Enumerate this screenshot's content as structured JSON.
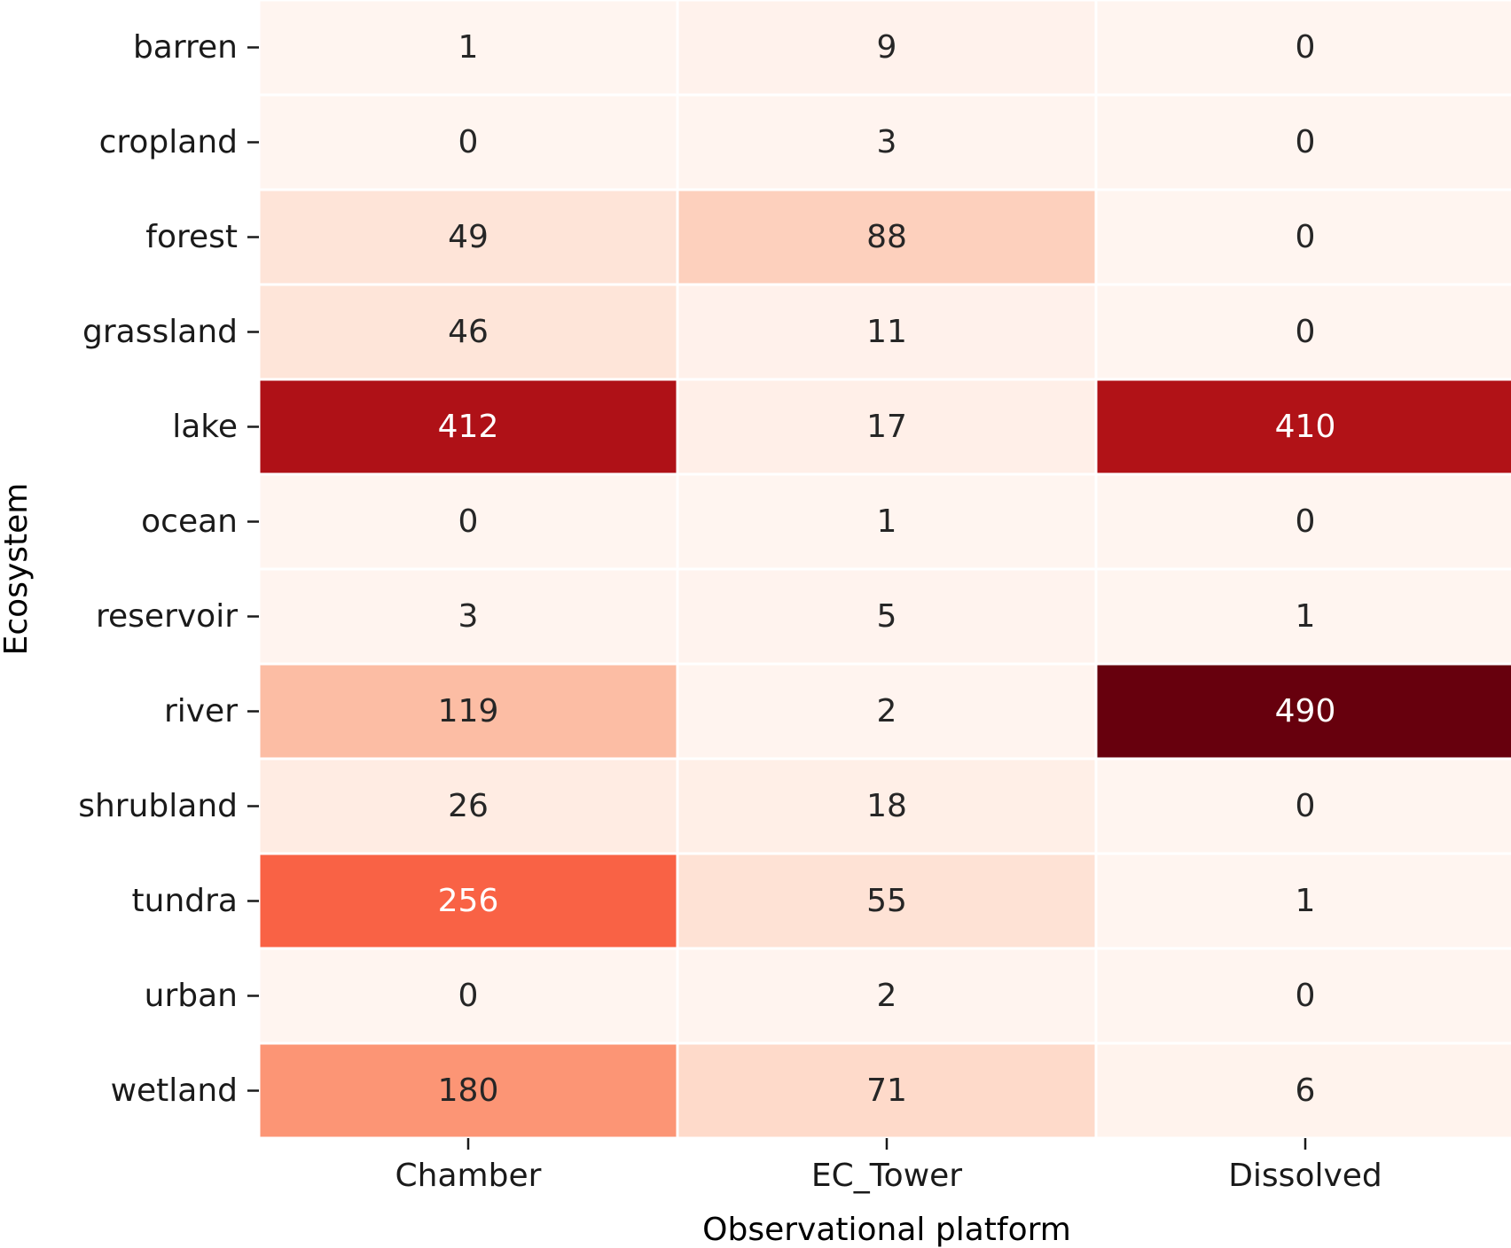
{
  "chart_data": {
    "type": "heatmap",
    "xlabel": "Observational platform",
    "ylabel": "Ecosystem",
    "x_categories": [
      "Chamber",
      "EC_Tower",
      "Dissolved"
    ],
    "y_categories": [
      "barren",
      "cropland",
      "forest",
      "grassland",
      "lake",
      "ocean",
      "reservoir",
      "river",
      "shrubland",
      "tundra",
      "urban",
      "wetland"
    ],
    "values": [
      [
        1,
        9,
        0
      ],
      [
        0,
        3,
        0
      ],
      [
        49,
        88,
        0
      ],
      [
        46,
        11,
        0
      ],
      [
        412,
        17,
        410
      ],
      [
        0,
        1,
        0
      ],
      [
        3,
        5,
        1
      ],
      [
        119,
        2,
        490
      ],
      [
        26,
        18,
        0
      ],
      [
        256,
        55,
        1
      ],
      [
        0,
        2,
        0
      ],
      [
        180,
        71,
        6
      ]
    ],
    "value_range": [
      0,
      490
    ],
    "colormap": "Reds",
    "colormap_stops": [
      "#fff5f0",
      "#fee0d2",
      "#fcbba1",
      "#fc9272",
      "#fb6a4a",
      "#ef3b2c",
      "#cb181d",
      "#a50f15",
      "#67000d"
    ],
    "grid_line_color": "#ffffff",
    "dark_text_color": "#262626",
    "light_text_color": "#ffffff"
  }
}
